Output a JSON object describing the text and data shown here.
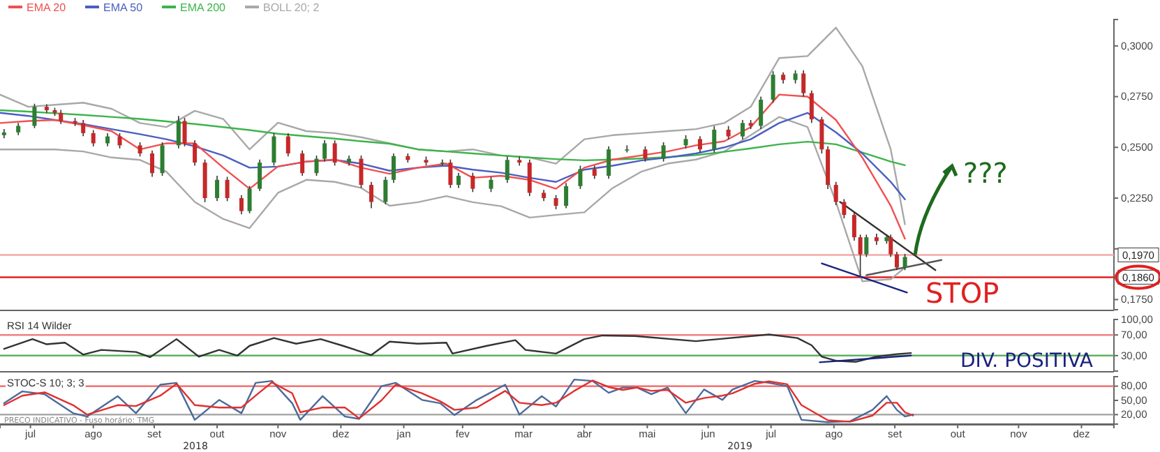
{
  "chart_data": [
    {
      "type": "candlestick",
      "legend": "top left",
      "tick_labels": "y",
      "xlim": [
        "2018-07-01",
        "2020-01-01"
      ],
      "ylim": [
        0.17,
        0.313
      ],
      "yticks": [
        {
          "value": 0.175,
          "label": "0,1750"
        },
        {
          "value": 0.2,
          "label": null
        },
        {
          "value": 0.225,
          "label": "0,2250"
        },
        {
          "value": 0.25,
          "label": "0,2500"
        },
        {
          "value": 0.275,
          "label": "0,2750"
        },
        {
          "value": 0.3,
          "label": "0,3000"
        }
      ],
      "x": [
        "2018-07-03",
        "2018-07-10",
        "2018-07-18",
        "2018-07-24",
        "2018-07-28",
        "2018-07-31",
        "2018-08-07",
        "2018-08-11",
        "2018-08-16",
        "2018-08-23",
        "2018-08-29",
        "2018-09-08",
        "2018-09-14",
        "2018-09-19",
        "2018-09-27",
        "2018-09-30",
        "2018-10-05",
        "2018-10-10",
        "2018-10-16",
        "2018-10-21",
        "2018-10-28",
        "2018-11-01",
        "2018-11-06",
        "2018-11-13",
        "2018-11-20",
        "2018-11-27",
        "2018-12-04",
        "2018-12-08",
        "2018-12-13",
        "2018-12-20",
        "2018-12-26",
        "2018-12-31",
        "2019-01-07",
        "2019-01-11",
        "2019-01-18",
        "2019-01-27",
        "2019-02-04",
        "2019-02-08",
        "2019-02-12",
        "2019-02-19",
        "2019-02-28",
        "2019-03-08",
        "2019-03-14",
        "2019-03-19",
        "2019-03-26",
        "2019-04-01",
        "2019-04-06",
        "2019-04-13",
        "2019-04-20",
        "2019-04-27",
        "2019-05-06",
        "2019-05-15",
        "2019-05-24",
        "2019-06-04",
        "2019-06-11",
        "2019-06-18",
        "2019-06-25",
        "2019-07-02",
        "2019-07-06",
        "2019-07-11",
        "2019-07-17",
        "2019-07-22",
        "2019-07-28",
        "2019-08-01",
        "2019-08-05",
        "2019-08-10",
        "2019-08-13",
        "2019-08-17",
        "2019-08-21",
        "2019-08-26",
        "2019-08-29",
        "2019-09-01",
        "2019-09-06",
        "2019-09-11",
        "2019-09-13",
        "2019-09-16",
        "2019-09-20"
      ],
      "ohlc": [
        [
          0.256,
          0.259,
          0.2545,
          0.2574
        ],
        [
          0.2574,
          0.262,
          0.256,
          0.2606
        ],
        [
          0.2606,
          0.2715,
          0.2595,
          0.27
        ],
        [
          0.27,
          0.2712,
          0.267,
          0.2683
        ],
        [
          0.2683,
          0.2695,
          0.2655,
          0.267
        ],
        [
          0.267,
          0.2685,
          0.2615,
          0.263
        ],
        [
          0.263,
          0.2645,
          0.2605,
          0.262
        ],
        [
          0.262,
          0.2635,
          0.2555,
          0.257
        ],
        [
          0.257,
          0.2585,
          0.2505,
          0.252
        ],
        [
          0.252,
          0.257,
          0.2505,
          0.2554
        ],
        [
          0.2554,
          0.257,
          0.2495,
          0.251
        ],
        [
          0.251,
          0.2525,
          0.2455,
          0.247
        ],
        [
          0.247,
          0.2485,
          0.2355,
          0.2373
        ],
        [
          0.2373,
          0.2525,
          0.236,
          0.251
        ],
        [
          0.251,
          0.2655,
          0.2495,
          0.263
        ],
        [
          0.263,
          0.2645,
          0.2505,
          0.252
        ],
        [
          0.252,
          0.2535,
          0.241,
          0.2425
        ],
        [
          0.2425,
          0.244,
          0.223,
          0.225
        ],
        [
          0.225,
          0.236,
          0.2235,
          0.234
        ],
        [
          0.234,
          0.2355,
          0.2235,
          0.225
        ],
        [
          0.225,
          0.2265,
          0.217,
          0.2186
        ],
        [
          0.2186,
          0.231,
          0.2175,
          0.2296
        ],
        [
          0.2296,
          0.244,
          0.2285,
          0.2425
        ],
        [
          0.2425,
          0.257,
          0.241,
          0.2554
        ],
        [
          0.2554,
          0.257,
          0.2455,
          0.247
        ],
        [
          0.247,
          0.2485,
          0.236,
          0.2373
        ],
        [
          0.2373,
          0.246,
          0.236,
          0.2444
        ],
        [
          0.2444,
          0.2535,
          0.243,
          0.252
        ],
        [
          0.252,
          0.2535,
          0.241,
          0.2425
        ],
        [
          0.2425,
          0.246,
          0.241,
          0.2444
        ],
        [
          0.2444,
          0.246,
          0.23,
          0.2315
        ],
        [
          0.2315,
          0.233,
          0.22,
          0.2231
        ],
        [
          0.2231,
          0.2355,
          0.222,
          0.234
        ],
        [
          0.234,
          0.247,
          0.2325,
          0.2457
        ],
        [
          0.2457,
          0.247,
          0.2425,
          0.2438
        ],
        [
          0.2438,
          0.2455,
          0.241,
          0.2425
        ],
        [
          0.2425,
          0.244,
          0.241,
          0.2425
        ],
        [
          0.2425,
          0.244,
          0.23,
          0.2315
        ],
        [
          0.2315,
          0.2375,
          0.23,
          0.236
        ],
        [
          0.236,
          0.2375,
          0.228,
          0.2296
        ],
        [
          0.2296,
          0.2355,
          0.228,
          0.234
        ],
        [
          0.234,
          0.2455,
          0.2325,
          0.2438
        ],
        [
          0.2438,
          0.2455,
          0.241,
          0.2425
        ],
        [
          0.2425,
          0.244,
          0.226,
          0.2276
        ],
        [
          0.2276,
          0.229,
          0.2235,
          0.225
        ],
        [
          0.225,
          0.2265,
          0.2195,
          0.2212
        ],
        [
          0.2212,
          0.2325,
          0.22,
          0.2309
        ],
        [
          0.2309,
          0.241,
          0.2295,
          0.2393
        ],
        [
          0.2393,
          0.241,
          0.2345,
          0.236
        ],
        [
          0.236,
          0.2505,
          0.2345,
          0.249
        ],
        [
          0.249,
          0.251,
          0.2475,
          0.249
        ],
        [
          0.249,
          0.2505,
          0.243,
          0.2444
        ],
        [
          0.2444,
          0.2525,
          0.243,
          0.251
        ],
        [
          0.251,
          0.256,
          0.2495,
          0.2541
        ],
        [
          0.2541,
          0.2555,
          0.2475,
          0.249
        ],
        [
          0.249,
          0.2605,
          0.2475,
          0.2587
        ],
        [
          0.2587,
          0.2605,
          0.254,
          0.2554
        ],
        [
          0.2554,
          0.2635,
          0.254,
          0.262
        ],
        [
          0.262,
          0.2635,
          0.259,
          0.2606
        ],
        [
          0.2606,
          0.275,
          0.259,
          0.2735
        ],
        [
          0.2735,
          0.2875,
          0.272,
          0.2858
        ],
        [
          0.2858,
          0.287,
          0.2815,
          0.2832
        ],
        [
          0.2832,
          0.288,
          0.2815,
          0.2864
        ],
        [
          0.2864,
          0.288,
          0.275,
          0.2767
        ],
        [
          0.2767,
          0.278,
          0.262,
          0.2638
        ],
        [
          0.2638,
          0.265,
          0.247,
          0.249
        ],
        [
          0.249,
          0.2505,
          0.2295,
          0.2315
        ],
        [
          0.2315,
          0.233,
          0.2215,
          0.2231
        ],
        [
          0.2231,
          0.2245,
          0.215,
          0.2167
        ],
        [
          0.2167,
          0.218,
          0.204,
          0.2057
        ],
        [
          0.2057,
          0.207,
          0.186,
          0.1973
        ],
        [
          0.1973,
          0.207,
          0.196,
          0.2057
        ],
        [
          0.2057,
          0.2075,
          0.202,
          0.2038
        ],
        [
          0.2038,
          0.207,
          0.2025,
          0.2057
        ],
        [
          0.2057,
          0.207,
          0.196,
          0.1973
        ],
        [
          0.1973,
          0.1985,
          0.1895,
          0.1908
        ],
        [
          0.1908,
          0.1975,
          0.1895,
          0.196
        ]
      ],
      "series": [
        {
          "name": "BOLL 20; 2",
          "type": "line",
          "color": "#a8a8a8",
          "x": [
            "2018-07-01",
            "2018-07-15",
            "2018-07-28",
            "2018-08-11",
            "2018-08-25",
            "2018-09-08",
            "2018-09-21",
            "2018-10-05",
            "2018-10-19",
            "2018-11-01",
            "2018-11-15",
            "2018-11-29",
            "2018-12-13",
            "2018-12-26",
            "2019-01-09",
            "2019-01-23",
            "2019-02-06",
            "2019-02-19",
            "2019-03-05",
            "2019-03-19",
            "2019-04-01",
            "2019-04-15",
            "2019-04-29",
            "2019-05-13",
            "2019-05-26",
            "2019-06-09",
            "2019-06-23",
            "2019-07-06",
            "2019-07-20",
            "2019-08-03",
            "2019-08-17",
            "2019-08-30",
            "2019-09-13",
            "2019-09-20"
          ],
          "values": [
            0.276,
            0.27,
            0.271,
            0.272,
            0.269,
            0.262,
            0.26,
            0.268,
            0.264,
            0.249,
            0.2622,
            0.258,
            0.257,
            0.255,
            0.252,
            0.249,
            0.248,
            0.249,
            0.246,
            0.245,
            0.242,
            0.254,
            0.256,
            0.257,
            0.258,
            0.259,
            0.262,
            0.27,
            0.294,
            0.295,
            0.309,
            0.29,
            0.249,
            0.2121
          ]
        },
        {
          "type": "line",
          "color": "#a8a8a8",
          "x": [
            "2018-07-01",
            "2018-07-15",
            "2018-07-28",
            "2018-08-11",
            "2018-08-25",
            "2018-09-08",
            "2018-09-21",
            "2018-10-05",
            "2018-10-19",
            "2018-11-01",
            "2018-11-15",
            "2018-11-29",
            "2018-12-13",
            "2018-12-26",
            "2019-01-09",
            "2019-01-23",
            "2019-02-06",
            "2019-02-19",
            "2019-03-05",
            "2019-03-19",
            "2019-04-01",
            "2019-04-15",
            "2019-04-29",
            "2019-05-13",
            "2019-05-26",
            "2019-06-09",
            "2019-06-23",
            "2019-07-06",
            "2019-07-20",
            "2019-08-03",
            "2019-08-17",
            "2019-08-30",
            "2019-09-13",
            "2019-09-20"
          ],
          "values": [
            0.249,
            0.249,
            0.249,
            0.248,
            0.245,
            0.2438,
            0.238,
            0.2231,
            0.2147,
            0.2102,
            0.2276,
            0.234,
            0.233,
            0.23,
            0.2212,
            0.223,
            0.226,
            0.223,
            0.221,
            0.2154,
            0.2167,
            0.218,
            0.23,
            0.238,
            0.242,
            0.244,
            0.248,
            0.256,
            0.265,
            0.26,
            0.2231,
            0.184,
            0.185,
            0.1908
          ]
        },
        {
          "name": "EMA 200",
          "type": "line",
          "color": "#3cb44b",
          "x": [
            "2018-07-01",
            "2018-07-15",
            "2018-07-28",
            "2018-08-11",
            "2018-08-25",
            "2018-09-08",
            "2018-09-21",
            "2018-10-05",
            "2018-10-19",
            "2018-11-01",
            "2018-11-15",
            "2018-11-29",
            "2018-12-13",
            "2018-12-26",
            "2019-01-09",
            "2019-01-23",
            "2019-02-06",
            "2019-02-19",
            "2019-03-05",
            "2019-03-19",
            "2019-04-01",
            "2019-04-15",
            "2019-04-29",
            "2019-05-13",
            "2019-05-26",
            "2019-06-09",
            "2019-06-23",
            "2019-07-06",
            "2019-07-20",
            "2019-08-03",
            "2019-08-17",
            "2019-08-30",
            "2019-09-13",
            "2019-09-20"
          ],
          "values": [
            0.2683,
            0.2676,
            0.2668,
            0.266,
            0.265,
            0.264,
            0.2628,
            0.2615,
            0.26,
            0.2585,
            0.2567,
            0.2555,
            0.2543,
            0.253,
            0.2518,
            0.249,
            0.248,
            0.247,
            0.246,
            0.245,
            0.2442,
            0.2436,
            0.244,
            0.2445,
            0.2452,
            0.2462,
            0.2478,
            0.2495,
            0.2515,
            0.2528,
            0.2515,
            0.2475,
            0.243,
            0.2412
          ]
        },
        {
          "name": "EMA 50",
          "type": "line",
          "color": "#4a5fc1",
          "x": [
            "2018-07-01",
            "2018-07-15",
            "2018-07-28",
            "2018-08-11",
            "2018-08-25",
            "2018-09-08",
            "2018-09-21",
            "2018-10-05",
            "2018-10-19",
            "2018-11-01",
            "2018-11-15",
            "2018-11-29",
            "2018-12-13",
            "2018-12-26",
            "2019-01-09",
            "2019-01-23",
            "2019-02-06",
            "2019-02-19",
            "2019-03-05",
            "2019-03-19",
            "2019-04-01",
            "2019-04-15",
            "2019-04-29",
            "2019-05-13",
            "2019-05-26",
            "2019-06-09",
            "2019-06-23",
            "2019-07-06",
            "2019-07-20",
            "2019-08-03",
            "2019-08-17",
            "2019-08-30",
            "2019-09-13",
            "2019-09-20"
          ],
          "values": [
            0.267,
            0.2655,
            0.2635,
            0.2615,
            0.259,
            0.2565,
            0.254,
            0.2505,
            0.246,
            0.24,
            0.2405,
            0.243,
            0.2438,
            0.242,
            0.2385,
            0.24,
            0.241,
            0.239,
            0.2375,
            0.235,
            0.233,
            0.239,
            0.241,
            0.2435,
            0.245,
            0.247,
            0.25,
            0.254,
            0.262,
            0.267,
            0.2574,
            0.247,
            0.233,
            0.2244
          ]
        },
        {
          "name": "EMA 20",
          "type": "line",
          "color": "#f05050",
          "x": [
            "2018-07-01",
            "2018-07-15",
            "2018-07-28",
            "2018-08-11",
            "2018-08-25",
            "2018-09-08",
            "2018-09-21",
            "2018-10-05",
            "2018-10-19",
            "2018-11-01",
            "2018-11-15",
            "2018-11-29",
            "2018-12-13",
            "2018-12-26",
            "2019-01-09",
            "2019-01-23",
            "2019-02-06",
            "2019-02-19",
            "2019-03-05",
            "2019-03-19",
            "2019-04-01",
            "2019-04-15",
            "2019-04-29",
            "2019-05-13",
            "2019-05-26",
            "2019-06-09",
            "2019-06-23",
            "2019-07-06",
            "2019-07-20",
            "2019-08-03",
            "2019-08-17",
            "2019-08-30",
            "2019-09-13",
            "2019-09-20"
          ],
          "values": [
            0.262,
            0.263,
            0.2635,
            0.261,
            0.258,
            0.249,
            0.252,
            0.252,
            0.24,
            0.2296,
            0.2406,
            0.243,
            0.244,
            0.24,
            0.237,
            0.24,
            0.242,
            0.235,
            0.236,
            0.234,
            0.2296,
            0.24,
            0.244,
            0.246,
            0.248,
            0.251,
            0.253,
            0.26,
            0.276,
            0.275,
            0.2635,
            0.245,
            0.2212,
            0.205
          ]
        },
        {
          "type": "line",
          "color": "#333333",
          "x": [
            "2019-08-19",
            "2019-10-05"
          ],
          "values": [
            0.2231,
            0.1895
          ]
        },
        {
          "type": "line",
          "color": "#555555",
          "x": [
            "2019-09-01",
            "2019-10-08"
          ],
          "values": [
            0.187,
            0.1945
          ]
        },
        {
          "type": "line",
          "color": "#1a237e",
          "x": [
            "2019-08-10",
            "2019-09-21"
          ],
          "values": [
            0.1928,
            0.1785
          ]
        }
      ],
      "ref_lines": [
        {
          "axis": "y",
          "value": 0.197,
          "label": "0,1970",
          "color": "#f4a8a8"
        },
        {
          "axis": "y",
          "value": 0.186,
          "label": "0,1860",
          "color": "#e02020"
        }
      ],
      "annotations": [
        "STOP",
        {
          "text": "???",
          "x": "2019-09-25",
          "y": 0.197
        }
      ]
    },
    {
      "type": "line",
      "title": "RSI 14 Wilder",
      "tick_labels": "y",
      "xlim": [
        "2018-07-01",
        "2020-01-01"
      ],
      "ylim": [
        0,
        100
      ],
      "yticks": [
        {
          "value": 30,
          "label": "30,00"
        },
        {
          "value": 70,
          "label": "70,00"
        },
        {
          "value": 100,
          "label": "100,00"
        }
      ],
      "series": [
        {
          "color": "#333333",
          "x": [
            "2018-07-03",
            "2018-07-17",
            "2018-07-24",
            "2018-08-02",
            "2018-08-11",
            "2018-08-20",
            "2018-09-06",
            "2018-09-13",
            "2018-09-26",
            "2018-10-07",
            "2018-10-17",
            "2018-10-26",
            "2018-11-01",
            "2018-11-13",
            "2018-11-24",
            "2018-12-06",
            "2018-12-17",
            "2018-12-31",
            "2019-01-09",
            "2019-01-23",
            "2019-02-06",
            "2019-02-09",
            "2019-02-26",
            "2019-03-12",
            "2019-03-17",
            "2019-04-01",
            "2019-04-15",
            "2019-04-24",
            "2019-05-10",
            "2019-06-09",
            "2019-07-15",
            "2019-07-29",
            "2019-08-05",
            "2019-08-10",
            "2019-08-17",
            "2019-08-27",
            "2019-09-06",
            "2019-09-16",
            "2019-09-23"
          ],
          "values": [
            43,
            62,
            52,
            55,
            32,
            41,
            37,
            27,
            62,
            28,
            41,
            30,
            49,
            64,
            53,
            62,
            49,
            31,
            57,
            53,
            55,
            34,
            49,
            60,
            41,
            34,
            62,
            69,
            68,
            58,
            71,
            64,
            50,
            28,
            20,
            18,
            28,
            33,
            35
          ]
        },
        {
          "color": "#1a237e",
          "x": [
            "2019-08-09",
            "2019-09-23"
          ],
          "values": [
            17,
            30
          ]
        }
      ],
      "ref_lines": [
        {
          "axis": "y",
          "value": 70,
          "color": "#f08080"
        },
        {
          "axis": "y",
          "value": 30,
          "color": "#60b060"
        }
      ],
      "annotations": [
        "DIV. POSITIVA"
      ]
    },
    {
      "type": "line",
      "title": "STOC-S 10; 3; 3",
      "xlim": [
        "2018-07-01",
        "2020-01-01"
      ],
      "ylim": [
        0,
        100
      ],
      "xticks": [
        {
          "value": "2018-07-16",
          "label": "jul"
        },
        {
          "value": "2018-08-16",
          "label": "ago"
        },
        {
          "value": "2018-09-15",
          "label": "set"
        },
        {
          "value": "2018-10-16",
          "label": "out"
        },
        {
          "value": "2018-11-15",
          "label": "nov"
        },
        {
          "value": "2018-12-16",
          "label": "dez"
        },
        {
          "value": "2019-01-16",
          "label": "jan"
        },
        {
          "value": "2019-02-14",
          "label": "fev"
        },
        {
          "value": "2019-03-16",
          "label": "mar"
        },
        {
          "value": "2019-04-15",
          "label": "abr"
        },
        {
          "value": "2019-05-16",
          "label": "mai"
        },
        {
          "value": "2019-06-15",
          "label": "jun"
        },
        {
          "value": "2019-07-16",
          "label": "jul"
        },
        {
          "value": "2019-08-16",
          "label": "ago"
        },
        {
          "value": "2019-09-15",
          "label": "set"
        },
        {
          "value": "2019-10-16",
          "label": "out"
        },
        {
          "value": "2019-11-15",
          "label": "nov"
        },
        {
          "value": "2019-12-16",
          "label": "dez"
        }
      ],
      "yticks": [
        {
          "value": 20,
          "label": "20,00"
        },
        {
          "value": 50,
          "label": "50,00"
        },
        {
          "value": 80,
          "label": "80,00"
        }
      ],
      "series": [
        {
          "color": "#4a6a9a",
          "x": [
            "2018-07-03",
            "2018-07-12",
            "2018-07-23",
            "2018-08-06",
            "2018-08-13",
            "2018-08-28",
            "2018-09-06",
            "2018-09-18",
            "2018-09-26",
            "2018-10-05",
            "2018-10-17",
            "2018-10-28",
            "2018-11-04",
            "2018-11-12",
            "2018-11-22",
            "2018-11-26",
            "2018-12-07",
            "2018-12-18",
            "2018-12-25",
            "2019-01-05",
            "2019-01-12",
            "2019-01-25",
            "2019-02-03",
            "2019-02-10",
            "2019-02-21",
            "2019-03-07",
            "2019-03-14",
            "2019-03-25",
            "2019-04-01",
            "2019-04-10",
            "2019-04-19",
            "2019-04-27",
            "2019-05-04",
            "2019-05-11",
            "2019-05-18",
            "2019-05-26",
            "2019-06-04",
            "2019-06-13",
            "2019-06-22",
            "2019-06-27",
            "2019-07-08",
            "2019-07-15",
            "2019-07-24",
            "2019-07-31",
            "2019-08-13",
            "2019-08-24",
            "2019-09-04",
            "2019-09-11",
            "2019-09-16",
            "2019-09-20",
            "2019-09-24"
          ],
          "values": [
            44,
            69,
            63,
            23,
            16,
            59,
            23,
            83,
            87,
            9,
            51,
            23,
            87,
            91,
            44,
            9,
            59,
            16,
            11,
            80,
            87,
            51,
            44,
            19,
            51,
            83,
            20,
            59,
            37,
            94,
            91,
            66,
            77,
            77,
            63,
            77,
            23,
            73,
            51,
            73,
            91,
            87,
            80,
            9,
            4,
            6,
            30,
            59,
            30,
            16,
            20
          ]
        },
        {
          "color": "#e03030",
          "x": [
            "2018-07-03",
            "2018-07-12",
            "2018-07-23",
            "2018-08-06",
            "2018-08-13",
            "2018-08-28",
            "2018-09-06",
            "2018-09-18",
            "2018-09-26",
            "2018-10-05",
            "2018-10-17",
            "2018-10-28",
            "2018-11-04",
            "2018-11-12",
            "2018-11-22",
            "2018-11-26",
            "2018-12-07",
            "2018-12-18",
            "2018-12-25",
            "2019-01-05",
            "2019-01-12",
            "2019-01-25",
            "2019-02-03",
            "2019-02-10",
            "2019-02-21",
            "2019-03-07",
            "2019-03-14",
            "2019-03-25",
            "2019-04-01",
            "2019-04-10",
            "2019-04-19",
            "2019-04-27",
            "2019-05-04",
            "2019-05-11",
            "2019-05-18",
            "2019-05-26",
            "2019-06-04",
            "2019-06-13",
            "2019-06-22",
            "2019-06-27",
            "2019-07-08",
            "2019-07-15",
            "2019-07-24",
            "2019-07-31",
            "2019-08-13",
            "2019-08-24",
            "2019-09-04",
            "2019-09-11",
            "2019-09-16",
            "2019-09-20",
            "2019-09-24"
          ],
          "values": [
            40,
            60,
            67,
            40,
            20,
            40,
            38,
            60,
            85,
            40,
            35,
            35,
            60,
            88,
            65,
            25,
            35,
            35,
            12,
            50,
            83,
            65,
            48,
            30,
            35,
            70,
            45,
            40,
            45,
            70,
            92,
            78,
            72,
            77,
            70,
            72,
            45,
            55,
            60,
            65,
            85,
            90,
            84,
            40,
            8,
            5,
            18,
            45,
            45,
            25,
            18
          ]
        }
      ],
      "ref_lines": [
        {
          "axis": "y",
          "value": 80,
          "color": "#f06060"
        },
        {
          "axis": "y",
          "value": 20,
          "color": "#a0a0a0"
        }
      ],
      "annotations": [
        "PREÇO INDICATIVO - Fuso horário: TMG",
        "2018",
        "2019"
      ]
    }
  ]
}
